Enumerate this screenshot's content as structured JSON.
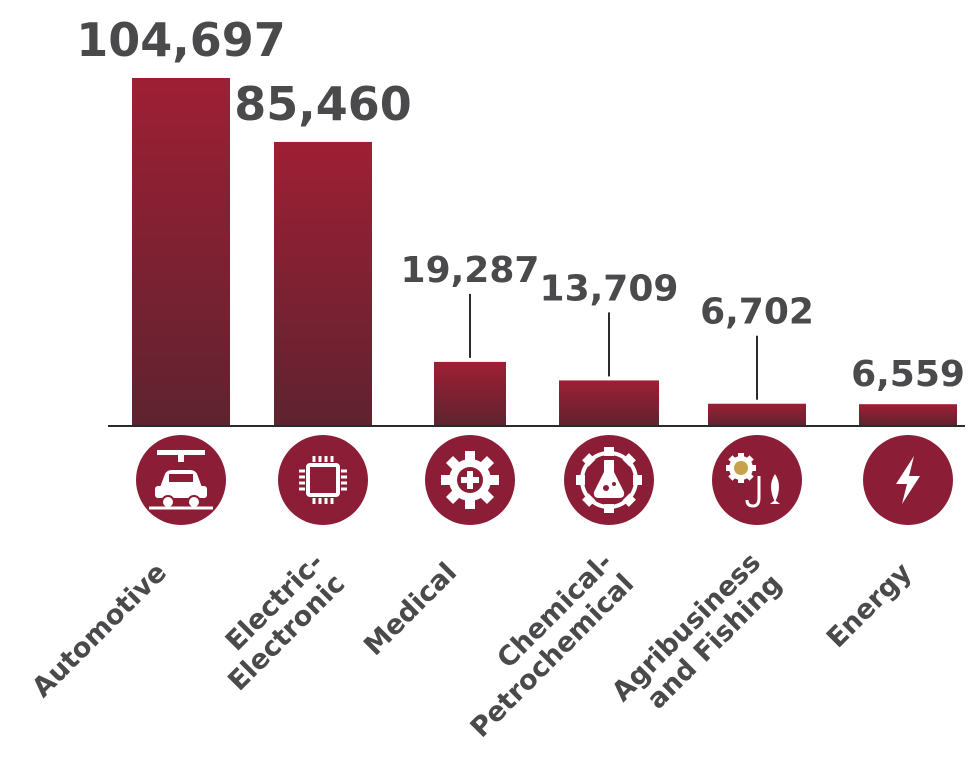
{
  "chart_data": {
    "type": "bar",
    "categories": [
      "Automotive",
      "Electric-Electronic",
      "Medical",
      "Chemical-Petrochemical",
      "Agribusiness and Fishing",
      "Energy"
    ],
    "category_lines": [
      [
        "Automotive"
      ],
      [
        "Electric-",
        "Electronic"
      ],
      [
        "Medical"
      ],
      [
        "Chemical-",
        "Petrochemical"
      ],
      [
        "Agribusiness",
        "and Fishing"
      ],
      [
        "Energy"
      ]
    ],
    "values": [
      104697,
      85460,
      19287,
      13709,
      6702,
      6559
    ],
    "value_labels": [
      "104,697",
      "85,460",
      "19,287",
      "13,709",
      "6,702",
      "6,559"
    ],
    "icons": [
      "car-assembly-icon",
      "microchip-icon",
      "medical-gear-icon",
      "chemical-flask-gear-icon",
      "agri-fishing-icon",
      "lightning-bolt-icon"
    ],
    "ylim": [
      0,
      104697
    ],
    "grid": false,
    "legend": "none",
    "colors": {
      "bar_top": "#9e1f34",
      "bar_bottom": "#5e2330",
      "icon_circle": "#8b1d36",
      "icon_glyph": "#ffffff",
      "text": "#4a4a4c",
      "axis": "#2b2b2b"
    }
  }
}
